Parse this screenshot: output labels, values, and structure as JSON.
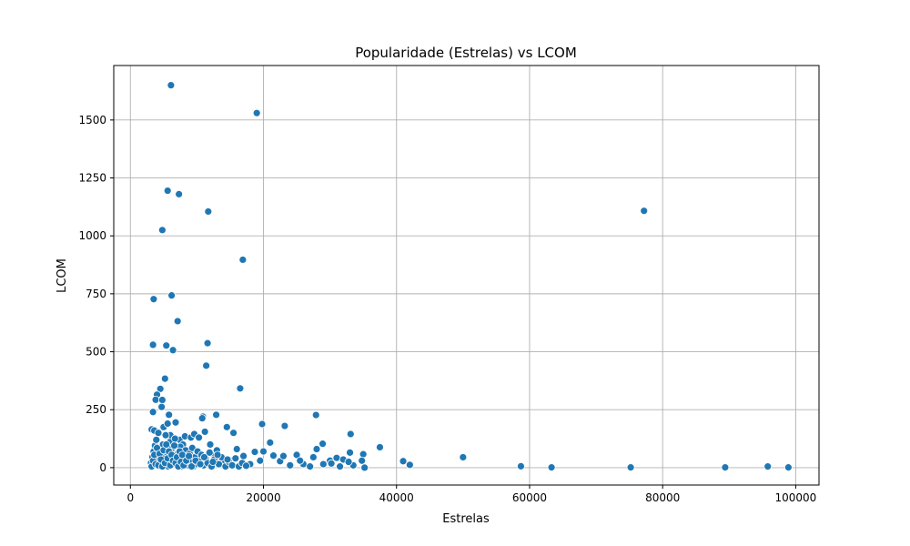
{
  "chart_data": {
    "type": "scatter",
    "title": "Popularidade (Estrelas) vs LCOM",
    "xlabel": "Estrelas",
    "ylabel": "LCOM",
    "xlim": [
      -2500,
      103500
    ],
    "ylim": [
      -75,
      1735
    ],
    "xticks": [
      0,
      20000,
      40000,
      60000,
      80000,
      100000
    ],
    "xtick_labels": [
      "0",
      "20000",
      "40000",
      "60000",
      "80000",
      "100000"
    ],
    "yticks": [
      0,
      250,
      500,
      750,
      1000,
      1250,
      1500
    ],
    "ytick_labels": [
      "0",
      "250",
      "500",
      "750",
      "1000",
      "1250",
      "1500"
    ],
    "grid": true,
    "marker_color": "#1f77b4",
    "points": [
      [
        6100,
        1650
      ],
      [
        19000,
        1530
      ],
      [
        5600,
        1195
      ],
      [
        7300,
        1180
      ],
      [
        11700,
        1105
      ],
      [
        77200,
        1108
      ],
      [
        4800,
        1025
      ],
      [
        16900,
        897
      ],
      [
        3500,
        727
      ],
      [
        6200,
        743
      ],
      [
        7100,
        632
      ],
      [
        3400,
        530
      ],
      [
        5400,
        527
      ],
      [
        6400,
        507
      ],
      [
        11600,
        537
      ],
      [
        5200,
        384
      ],
      [
        11400,
        440
      ],
      [
        16500,
        342
      ],
      [
        4500,
        340
      ],
      [
        4000,
        315
      ],
      [
        3800,
        293
      ],
      [
        4800,
        292
      ],
      [
        4700,
        262
      ],
      [
        5800,
        228
      ],
      [
        3400,
        240
      ],
      [
        12900,
        228
      ],
      [
        10900,
        220
      ],
      [
        10800,
        213
      ],
      [
        27900,
        227
      ],
      [
        14500,
        175
      ],
      [
        15500,
        150
      ],
      [
        19800,
        188
      ],
      [
        23200,
        180
      ],
      [
        33100,
        145
      ],
      [
        21000,
        108
      ],
      [
        28900,
        103
      ],
      [
        37500,
        88
      ],
      [
        25000,
        55
      ],
      [
        27500,
        45
      ],
      [
        30000,
        30
      ],
      [
        31000,
        42
      ],
      [
        32000,
        35
      ],
      [
        33000,
        65
      ],
      [
        35000,
        58
      ],
      [
        41000,
        28
      ],
      [
        42000,
        12
      ],
      [
        50000,
        45
      ],
      [
        58700,
        6
      ],
      [
        63300,
        1
      ],
      [
        75200,
        1
      ],
      [
        89400,
        1
      ],
      [
        95800,
        5
      ],
      [
        98900,
        1
      ],
      [
        3200,
        165
      ],
      [
        3600,
        160
      ],
      [
        4200,
        150
      ],
      [
        5000,
        175
      ],
      [
        5600,
        190
      ],
      [
        6000,
        140
      ],
      [
        6800,
        195
      ],
      [
        7400,
        120
      ],
      [
        7900,
        100
      ],
      [
        8200,
        135
      ],
      [
        9100,
        130
      ],
      [
        9600,
        145
      ],
      [
        10300,
        130
      ],
      [
        11200,
        155
      ],
      [
        12000,
        100
      ],
      [
        12500,
        60
      ],
      [
        13000,
        75
      ],
      [
        14000,
        20
      ],
      [
        15000,
        30
      ],
      [
        16000,
        80
      ],
      [
        17000,
        50
      ],
      [
        18000,
        15
      ],
      [
        18700,
        68
      ],
      [
        19500,
        30
      ],
      [
        20000,
        70
      ],
      [
        21500,
        52
      ],
      [
        22500,
        28
      ],
      [
        23000,
        50
      ],
      [
        24000,
        10
      ],
      [
        26000,
        15
      ],
      [
        28000,
        80
      ],
      [
        29000,
        15
      ],
      [
        31500,
        5
      ],
      [
        33500,
        10
      ],
      [
        35200,
        0
      ],
      [
        3100,
        20
      ],
      [
        3300,
        45
      ],
      [
        3500,
        70
      ],
      [
        3700,
        95
      ],
      [
        3900,
        120
      ],
      [
        4100,
        40
      ],
      [
        4300,
        80
      ],
      [
        4500,
        10
      ],
      [
        4700,
        55
      ],
      [
        4900,
        100
      ],
      [
        5100,
        30
      ],
      [
        5300,
        140
      ],
      [
        5500,
        65
      ],
      [
        5700,
        5
      ],
      [
        5900,
        110
      ],
      [
        6100,
        25
      ],
      [
        6300,
        85
      ],
      [
        6500,
        45
      ],
      [
        6700,
        125
      ],
      [
        6900,
        15
      ],
      [
        7100,
        60
      ],
      [
        7300,
        35
      ],
      [
        7500,
        90
      ],
      [
        7700,
        5
      ],
      [
        7900,
        50
      ],
      [
        8100,
        20
      ],
      [
        8300,
        75
      ],
      [
        8500,
        40
      ],
      [
        8700,
        10
      ],
      [
        8900,
        60
      ],
      [
        9100,
        25
      ],
      [
        9300,
        85
      ],
      [
        9500,
        5
      ],
      [
        9700,
        45
      ],
      [
        9900,
        15
      ],
      [
        10100,
        70
      ],
      [
        10400,
        30
      ],
      [
        10700,
        55
      ],
      [
        11000,
        10
      ],
      [
        11300,
        40
      ],
      [
        11600,
        20
      ],
      [
        11900,
        65
      ],
      [
        12200,
        5
      ],
      [
        12600,
        35
      ],
      [
        13300,
        15
      ],
      [
        13700,
        45
      ],
      [
        14300,
        5
      ],
      [
        14800,
        25
      ],
      [
        15300,
        10
      ],
      [
        15800,
        40
      ],
      [
        16300,
        5
      ],
      [
        16800,
        20
      ],
      [
        17400,
        8
      ],
      [
        3200,
        5
      ],
      [
        3400,
        30
      ],
      [
        3600,
        55
      ],
      [
        3800,
        15
      ],
      [
        4000,
        85
      ],
      [
        4200,
        10
      ],
      [
        4400,
        60
      ],
      [
        4600,
        35
      ],
      [
        4800,
        5
      ],
      [
        5000,
        75
      ],
      [
        5200,
        20
      ],
      [
        5400,
        100
      ],
      [
        5600,
        40
      ],
      [
        5800,
        70
      ],
      [
        6000,
        10
      ],
      [
        6200,
        55
      ],
      [
        6400,
        30
      ],
      [
        6600,
        95
      ],
      [
        6800,
        20
      ],
      [
        7000,
        45
      ],
      [
        7200,
        5
      ],
      [
        7400,
        70
      ],
      [
        7600,
        25
      ],
      [
        7800,
        55
      ],
      [
        8000,
        10
      ],
      [
        8400,
        30
      ],
      [
        8800,
        50
      ],
      [
        9200,
        5
      ],
      [
        9800,
        30
      ],
      [
        10500,
        15
      ],
      [
        11100,
        45
      ],
      [
        12400,
        25
      ],
      [
        13100,
        55
      ],
      [
        14600,
        35
      ],
      [
        25500,
        30
      ],
      [
        27000,
        5
      ],
      [
        30200,
        18
      ],
      [
        32800,
        25
      ],
      [
        34800,
        30
      ]
    ]
  }
}
